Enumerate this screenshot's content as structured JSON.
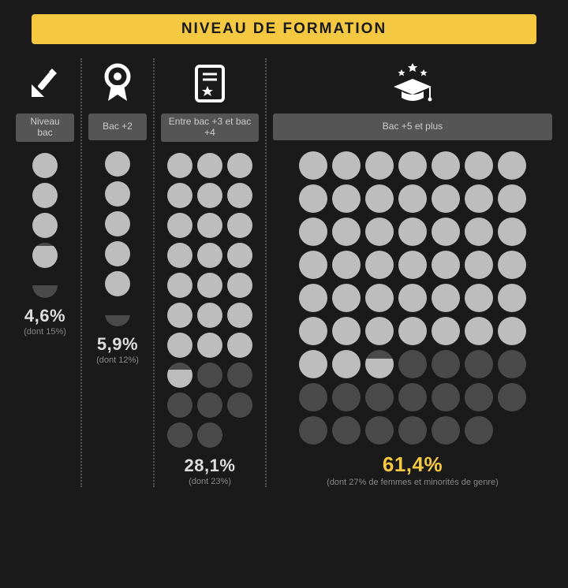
{
  "title": "NIVEAU DE FORMATION",
  "style": {
    "background": "#1a1a1a",
    "titleBg": "#f5c842",
    "titleColor": "#1a1a1a",
    "labelBg": "#555555",
    "labelColor": "#cccccc",
    "dotLight": "#bdbdbd",
    "dotDark": "#4a4a4a",
    "normalPctColor": "#dddddd",
    "highlightPctColor": "#f5c842",
    "subColor": "#888888",
    "iconColor": "#ffffff",
    "dotSize": 32,
    "dotSizeLarge": 36
  },
  "categories": [
    {
      "label": "Niveau bac",
      "percent": "4,6%",
      "sub_prefix": "(dont ",
      "sub_value": "15%",
      "sub_suffix": ")",
      "highlight": false,
      "cols": 1,
      "dotSize": 32,
      "totalDots": 5,
      "lightFull": 3,
      "lightPartial": 0.85,
      "darkPartial": 0.5
    },
    {
      "label": "Bac +2",
      "percent": "5,9%",
      "sub_prefix": "(dont ",
      "sub_value": "12%",
      "sub_suffix": ")",
      "highlight": false,
      "cols": 1,
      "dotSize": 32,
      "totalDots": 6,
      "lightFull": 5,
      "lightPartial": 0,
      "darkPartial": 0.45
    },
    {
      "label": "Entre bac +3 et bac +4",
      "percent": "28,1%",
      "sub_prefix": "(dont ",
      "sub_value": "23%",
      "sub_suffix": ")",
      "highlight": false,
      "cols": 3,
      "dotSize": 32,
      "totalDots": 29,
      "lightFull": 21,
      "lightPartial": 0.7,
      "darkPartial": 0
    },
    {
      "label": "Bac +5 et plus",
      "percent": "61,4%",
      "sub_prefix": "(dont ",
      "sub_value": "27% de femmes et minorités de genre",
      "sub_suffix": ")",
      "highlight": true,
      "cols": 7,
      "dotSize": 36,
      "totalDots": 62,
      "lightFull": 44,
      "lightPartial": 0.7,
      "darkPartial": 0
    }
  ]
}
